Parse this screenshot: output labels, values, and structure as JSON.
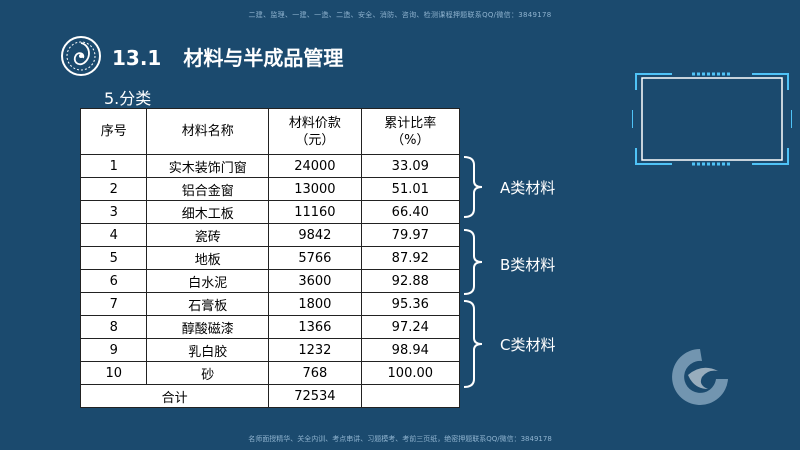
{
  "watermark": {
    "top": "二建、监理、一建、一造、二造、安全、消防、咨询、检测课程押题联系QQ/微信：3849178",
    "bottom": "名师面授精华、关全内训、考点串讲、习题模考、考前三页纸，绝密押题联系QQ/微信：3849178"
  },
  "header": {
    "section_number": "13.1",
    "section_title": "材料与半成品管理",
    "subtitle": "5.分类"
  },
  "table": {
    "headers": [
      "序号",
      "材料名称",
      "材料价款\n（元）",
      "累计比率\n（%）"
    ],
    "rows": [
      [
        "1",
        "实木装饰门窗",
        "24000",
        "33.09"
      ],
      [
        "2",
        "铝合金窗",
        "13000",
        "51.01"
      ],
      [
        "3",
        "细木工板",
        "11160",
        "66.40"
      ],
      [
        "4",
        "瓷砖",
        "9842",
        "79.97"
      ],
      [
        "5",
        "地板",
        "5766",
        "87.92"
      ],
      [
        "6",
        "白水泥",
        "3600",
        "92.88"
      ],
      [
        "7",
        "石膏板",
        "1800",
        "95.36"
      ],
      [
        "8",
        "醇酸磁漆",
        "1366",
        "97.24"
      ],
      [
        "9",
        "乳白胶",
        "1232",
        "98.94"
      ],
      [
        "10",
        "砂",
        "768",
        "100.00"
      ]
    ],
    "total_label": "合计",
    "total_value": "72534"
  },
  "groups": {
    "a": "A类材料",
    "b": "B类材料",
    "c": "C类材料"
  },
  "colors": {
    "background": "#1b4a6e",
    "accent": "#4fc3f7"
  },
  "icons": {
    "logo": "shell-emblem-icon",
    "frame": "tech-frame-icon",
    "deco": "wave-logo-icon"
  }
}
